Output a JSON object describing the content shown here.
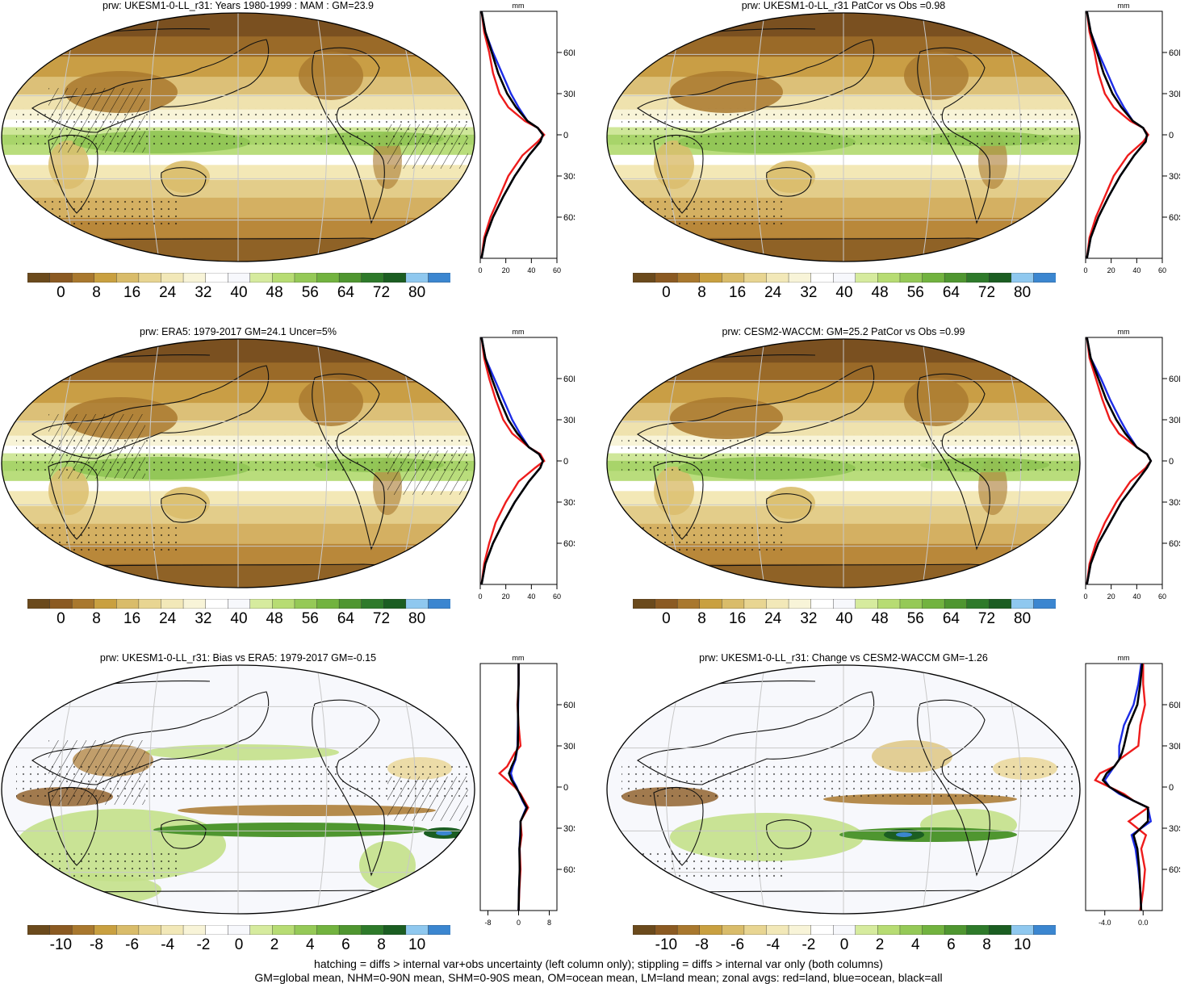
{
  "colorbar_colors": [
    "#6b4a1c",
    "#8b5a22",
    "#a9782e",
    "#c9a040",
    "#d9bc6a",
    "#e8d592",
    "#f2e8b8",
    "#f8f4d8",
    "#ffffff",
    "#f7f8fc",
    "#d6eb9e",
    "#b7dc73",
    "#95c957",
    "#72b33f",
    "#4f9630",
    "#2e7a2a",
    "#1b5e22",
    "#8fc8ef",
    "#3b86d0"
  ],
  "zonal_colors": {
    "land": "#ee1c1c",
    "ocean": "#1c2ce6",
    "all": "#000000"
  },
  "panels": [
    {
      "id": "p1",
      "title": "prw: UKESM1-0-LL_r31: Years 1980-1999 : MAM : GM=23.9",
      "kind": "clim",
      "hatch": true,
      "cb_labels": [
        "0",
        "8",
        "16",
        "24",
        "32",
        "40",
        "48",
        "56",
        "64",
        "72",
        "80"
      ],
      "zonal_xticks": [
        "0",
        "20",
        "40",
        "60"
      ],
      "zonal_unit": "mm",
      "zonal_yticks": [
        "60N",
        "30N",
        "0",
        "30S",
        "60S"
      ]
    },
    {
      "id": "p2",
      "title": "prw: UKESM1-0-LL_r31 PatCor vs Obs =0.98",
      "kind": "clim",
      "hatch": false,
      "cb_labels": [
        "0",
        "8",
        "16",
        "24",
        "32",
        "40",
        "48",
        "56",
        "64",
        "72",
        "80"
      ],
      "zonal_xticks": [
        "0",
        "20",
        "40",
        "60"
      ],
      "zonal_unit": "mm",
      "zonal_yticks": [
        "60N",
        "30N",
        "0",
        "30S",
        "60S"
      ]
    },
    {
      "id": "p3",
      "title": "prw: ERA5: 1979-2017 GM=24.1 Uncer=5%",
      "kind": "clim",
      "hatch": true,
      "cb_labels": [
        "0",
        "8",
        "16",
        "24",
        "32",
        "40",
        "48",
        "56",
        "64",
        "72",
        "80"
      ],
      "zonal_xticks": [
        "0",
        "20",
        "40",
        "60"
      ],
      "zonal_unit": "mm",
      "zonal_yticks": [
        "60N",
        "30N",
        "0",
        "30S",
        "60S"
      ]
    },
    {
      "id": "p4",
      "title": "prw: CESM2-WACCM: GM=25.2 PatCor vs Obs =0.99",
      "kind": "clim",
      "hatch": false,
      "cb_labels": [
        "0",
        "8",
        "16",
        "24",
        "32",
        "40",
        "48",
        "56",
        "64",
        "72",
        "80"
      ],
      "zonal_xticks": [
        "0",
        "20",
        "40",
        "60"
      ],
      "zonal_unit": "mm",
      "zonal_yticks": [
        "60N",
        "30N",
        "0",
        "30S",
        "60S"
      ]
    },
    {
      "id": "p5",
      "title": "prw: UKESM1-0-LL_r31: Bias vs ERA5: 1979-2017 GM=-0.15",
      "kind": "diff",
      "hatch": true,
      "cb_labels": [
        "-10",
        "-8",
        "-6",
        "-4",
        "-2",
        "0",
        "2",
        "4",
        "6",
        "8",
        "10"
      ],
      "zonal_xticks": [
        "-8",
        "0",
        "8"
      ],
      "zonal_unit": "mm",
      "zonal_yticks": [
        "60N",
        "30N",
        "0",
        "30S",
        "60S"
      ]
    },
    {
      "id": "p6",
      "title": "prw: UKESM1-0-LL_r31: Change vs CESM2-WACCM GM=-1.26",
      "kind": "diff",
      "hatch": false,
      "cb_labels": [
        "-10",
        "-8",
        "-6",
        "-4",
        "-2",
        "0",
        "2",
        "4",
        "6",
        "8",
        "10"
      ],
      "zonal_xticks": [
        "-4.0",
        "0.0"
      ],
      "zonal_unit": "mm",
      "zonal_yticks": [
        "60N",
        "30N",
        "0",
        "30S",
        "60S"
      ]
    }
  ],
  "chart_data": [
    {
      "type": "line",
      "title": "prw: UKESM1-0-LL_r31: Years 1980-1999 : MAM : GM=23.9",
      "xlabel": "mm",
      "xlim": [
        0,
        60
      ],
      "ylim": [
        -90,
        90
      ],
      "y": [
        -90,
        -75,
        -60,
        -45,
        -30,
        -15,
        -5,
        0,
        5,
        10,
        20,
        30,
        45,
        60,
        75,
        90
      ],
      "series": [
        {
          "name": "land",
          "values": [
            1,
            3,
            8,
            15,
            22,
            33,
            45,
            50,
            45,
            35,
            22,
            15,
            10,
            7,
            3,
            1
          ]
        },
        {
          "name": "ocean",
          "values": [
            1,
            4,
            10,
            18,
            27,
            38,
            47,
            49,
            45,
            37,
            30,
            24,
            17,
            10,
            4,
            1
          ]
        },
        {
          "name": "all",
          "values": [
            1,
            4,
            10,
            18,
            27,
            38,
            47,
            49,
            45,
            37,
            28,
            21,
            14,
            9,
            4,
            1
          ]
        }
      ]
    },
    {
      "type": "line",
      "title": "prw: UKESM1-0-LL_r31 PatCor vs Obs =0.98",
      "xlabel": "mm",
      "xlim": [
        0,
        60
      ],
      "ylim": [
        -90,
        90
      ],
      "y": [
        -90,
        -75,
        -60,
        -45,
        -30,
        -15,
        -5,
        0,
        5,
        10,
        20,
        30,
        45,
        60,
        75,
        90
      ],
      "series": [
        {
          "name": "land",
          "values": [
            1,
            3,
            8,
            15,
            22,
            33,
            45,
            49,
            45,
            35,
            22,
            15,
            10,
            7,
            3,
            1
          ]
        },
        {
          "name": "ocean",
          "values": [
            1,
            4,
            10,
            18,
            27,
            38,
            47,
            48,
            45,
            37,
            30,
            24,
            17,
            10,
            4,
            1
          ]
        },
        {
          "name": "all",
          "values": [
            1,
            4,
            10,
            18,
            27,
            38,
            47,
            48,
            45,
            37,
            28,
            21,
            14,
            9,
            4,
            1
          ]
        }
      ]
    },
    {
      "type": "line",
      "title": "prw: ERA5: 1979-2017 GM=24.1 Uncer=5%",
      "xlabel": "mm",
      "xlim": [
        0,
        60
      ],
      "ylim": [
        -90,
        90
      ],
      "y": [
        -90,
        -75,
        -60,
        -45,
        -30,
        -15,
        -5,
        0,
        5,
        10,
        20,
        30,
        45,
        60,
        75,
        90
      ],
      "series": [
        {
          "name": "land",
          "values": [
            1,
            3,
            7,
            12,
            20,
            30,
            43,
            50,
            47,
            38,
            25,
            18,
            12,
            7,
            3,
            1
          ]
        },
        {
          "name": "ocean",
          "values": [
            1,
            4,
            10,
            18,
            27,
            38,
            47,
            49,
            46,
            38,
            31,
            25,
            18,
            11,
            4,
            1
          ]
        },
        {
          "name": "all",
          "values": [
            1,
            4,
            10,
            18,
            27,
            38,
            47,
            49,
            46,
            38,
            29,
            22,
            15,
            9,
            4,
            1
          ]
        }
      ]
    },
    {
      "type": "line",
      "title": "prw: CESM2-WACCM: GM=25.2 PatCor vs Obs =0.99",
      "xlabel": "mm",
      "xlim": [
        0,
        60
      ],
      "ylim": [
        -90,
        90
      ],
      "y": [
        -90,
        -75,
        -60,
        -45,
        -30,
        -15,
        -5,
        0,
        5,
        10,
        20,
        30,
        45,
        60,
        75,
        90
      ],
      "series": [
        {
          "name": "land",
          "values": [
            1,
            3,
            8,
            15,
            24,
            35,
            47,
            51,
            48,
            40,
            26,
            19,
            13,
            8,
            3,
            1
          ]
        },
        {
          "name": "ocean",
          "values": [
            1,
            4,
            10,
            19,
            28,
            40,
            48,
            51,
            48,
            40,
            33,
            27,
            19,
            12,
            4,
            1
          ]
        },
        {
          "name": "all",
          "values": [
            1,
            4,
            10,
            19,
            28,
            40,
            48,
            51,
            48,
            40,
            31,
            24,
            16,
            10,
            4,
            1
          ]
        }
      ]
    },
    {
      "type": "line",
      "title": "prw: UKESM1-0-LL_r31: Bias vs ERA5: 1979-2017 GM=-0.15",
      "xlabel": "mm",
      "xlim": [
        -10,
        10
      ],
      "ylim": [
        -90,
        90
      ],
      "y": [
        -90,
        -75,
        -60,
        -45,
        -35,
        -25,
        -15,
        -10,
        -5,
        0,
        5,
        10,
        15,
        20,
        25,
        30,
        45,
        60,
        75,
        90
      ],
      "series": [
        {
          "name": "land",
          "values": [
            0,
            0.2,
            0.5,
            0.3,
            0.8,
            0.5,
            2.5,
            1.5,
            0.5,
            -1,
            -3,
            -5,
            -3,
            -2,
            -1,
            0.5,
            0,
            -0.3,
            0,
            0
          ]
        },
        {
          "name": "ocean",
          "values": [
            0,
            0.1,
            0.3,
            0.2,
            0.4,
            0.5,
            2,
            1,
            0.2,
            -0.5,
            -1.5,
            -2,
            -1.5,
            -0.8,
            -0.5,
            -0.3,
            -0.2,
            -0.1,
            0,
            0
          ]
        },
        {
          "name": "all",
          "values": [
            0,
            0.1,
            0.3,
            0.2,
            0.5,
            0.5,
            2.2,
            1.2,
            0.3,
            -0.7,
            -1.8,
            -2.5,
            -1.8,
            -1,
            -0.6,
            -0.2,
            -0.1,
            -0.2,
            0,
            0
          ]
        }
      ]
    },
    {
      "type": "line",
      "title": "prw: UKESM1-0-LL_r31: Change vs CESM2-WACCM GM=-1.26",
      "xlabel": "mm",
      "xlim": [
        -6,
        2
      ],
      "ylim": [
        -90,
        90
      ],
      "y": [
        -90,
        -75,
        -60,
        -45,
        -35,
        -25,
        -15,
        -10,
        -5,
        0,
        5,
        10,
        15,
        20,
        25,
        30,
        45,
        60,
        75,
        90
      ],
      "series": [
        {
          "name": "land",
          "values": [
            -0.3,
            0,
            0.2,
            -0.2,
            0.3,
            -1.5,
            0.5,
            -1,
            -2,
            -3.5,
            -5,
            -4.5,
            -3,
            -2.5,
            -1.5,
            -0.5,
            -0.3,
            0.2,
            0,
            0
          ]
        },
        {
          "name": "ocean",
          "values": [
            -0.2,
            -0.3,
            -0.5,
            -0.8,
            -1.2,
            0.8,
            0.5,
            -1,
            -2.5,
            -3.5,
            -4,
            -3.5,
            -3,
            -2.5,
            -2.5,
            -2.5,
            -2,
            -1,
            -0.5,
            -0.2
          ]
        },
        {
          "name": "all",
          "values": [
            -0.2,
            -0.3,
            -0.4,
            -0.6,
            -1,
            0.5,
            0.5,
            -1,
            -2.3,
            -3.5,
            -4.2,
            -3.8,
            -3,
            -2.5,
            -2.2,
            -2,
            -1.5,
            -0.6,
            -0.3,
            -0.1
          ]
        }
      ]
    }
  ],
  "footer": {
    "line1": "hatching = diffs > internal var+obs uncertainty (left column only); stippling = diffs > internal var only (both columns)",
    "line2": "GM=global mean, NHM=0-90N mean, SHM=0-90S mean, OM=ocean mean, LM=land mean; zonal avgs: red=land, blue=ocean, black=all"
  }
}
